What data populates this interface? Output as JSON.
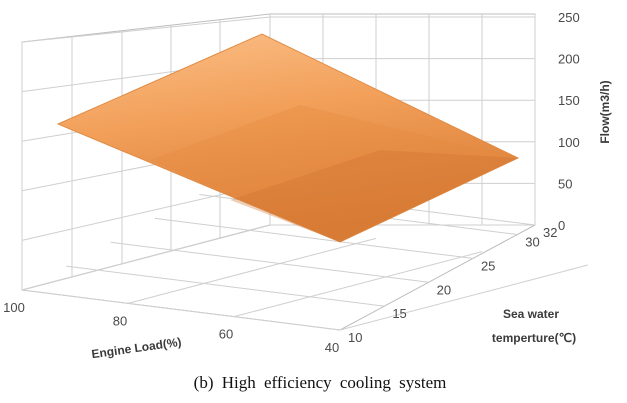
{
  "chart_data": {
    "type": "surface",
    "title": "",
    "caption": "(b)  High efficiency cooling system",
    "x_axis": {
      "label": "Engine Load(%)",
      "ticks": [
        "100",
        "80",
        "60",
        "40"
      ]
    },
    "y_axis": {
      "label": "Sea water temperture(℃)",
      "label_line1": "Sea water",
      "label_line2": "temperture(℃)",
      "ticks": [
        "10",
        "15",
        "20",
        "25",
        "30",
        "32"
      ]
    },
    "z_axis": {
      "label": "Flow(m3/h)",
      "ticks": [
        "0",
        "50",
        "100",
        "150",
        "200",
        "250"
      ],
      "range": [
        0,
        250
      ]
    },
    "grid": true,
    "surface_color": "#f09a4e",
    "surface": {
      "description_points": [
        {
          "engine_load": 100,
          "sea_water_temp": 10,
          "flow": 125
        },
        {
          "engine_load": 100,
          "sea_water_temp": 32,
          "flow": 215
        },
        {
          "engine_load": 40,
          "sea_water_temp": 10,
          "flow": 10
        },
        {
          "engine_load": 40,
          "sea_water_temp": 32,
          "flow": 95
        }
      ]
    }
  }
}
